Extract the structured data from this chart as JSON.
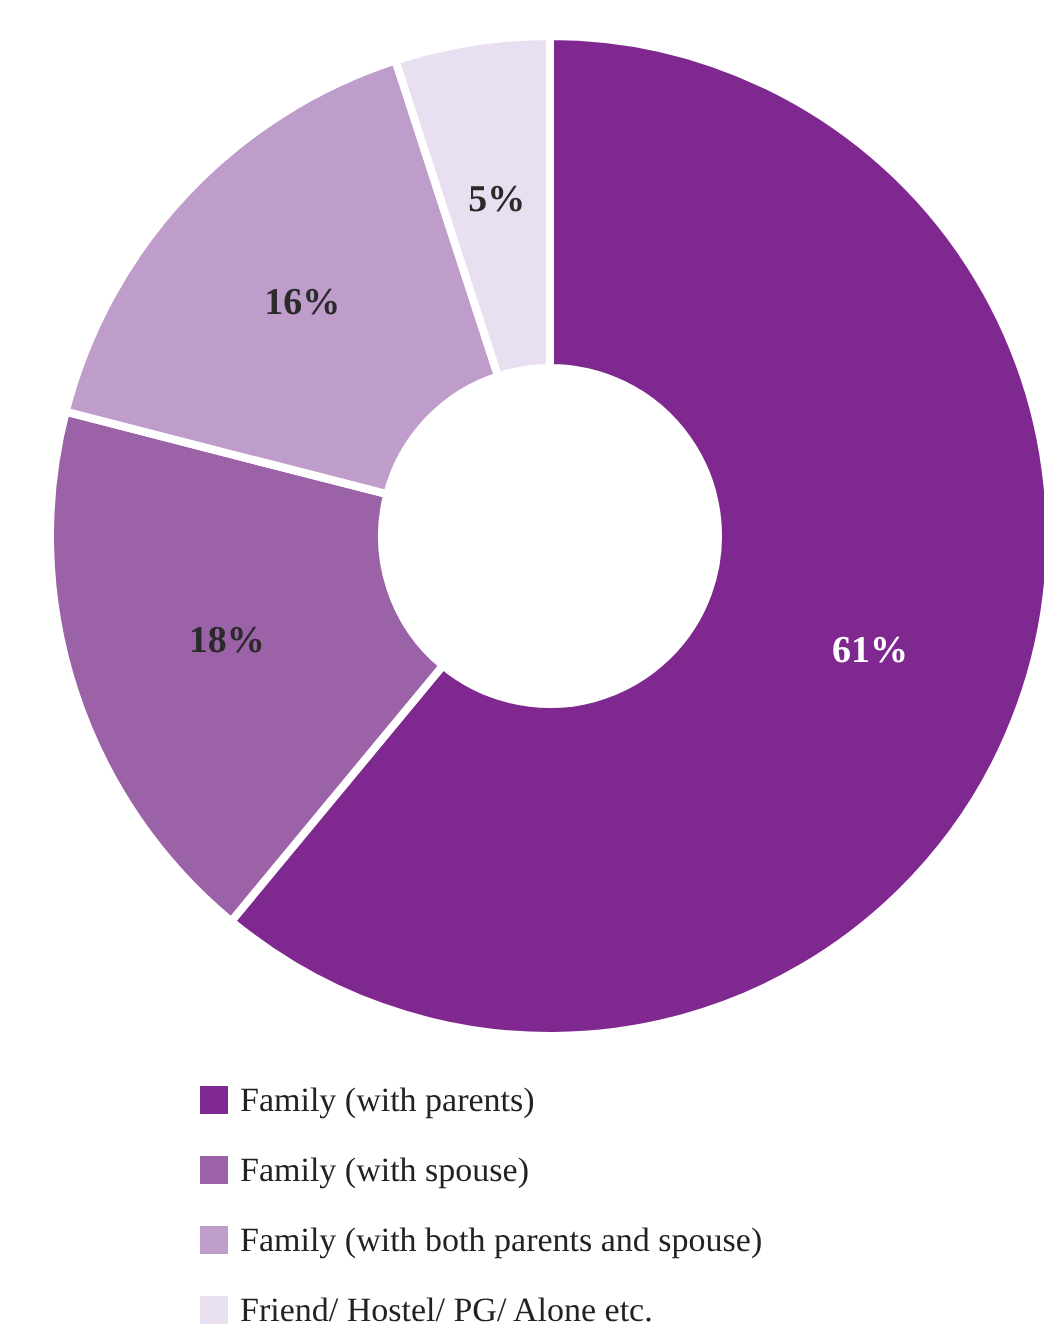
{
  "chart_data": {
    "type": "donut",
    "categories": [
      "Family (with parents)",
      "Family (with spouse)",
      "Family (with both parents and spouse)",
      "Friend/ Hostel/ PG/ Alone etc."
    ],
    "values": [
      61,
      18,
      16,
      5
    ],
    "colors": [
      "#7f288f",
      "#9b62a8",
      "#bf9dcb",
      "#e8dff0"
    ],
    "value_labels": [
      "61%",
      "18%",
      "16%",
      "5%"
    ],
    "legend": "bottom"
  }
}
